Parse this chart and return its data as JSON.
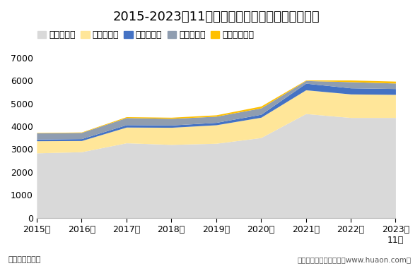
{
  "title": "2015-2023年11月广东省各发电类型发电量统计图",
  "xlabel_unit": "单位：亿千瓦时",
  "footer": "制图：华经产业研究院（www.huaon.com）",
  "years": [
    "2015年",
    "2016年",
    "2017年",
    "2018年",
    "2019年",
    "2020年",
    "2021年",
    "2022年",
    "2023年\n11月"
  ],
  "series": [
    {
      "name": "火力发电量",
      "color": "#d9d9d9",
      "values": [
        2830,
        2880,
        3270,
        3200,
        3250,
        3500,
        4550,
        4380,
        4380
      ]
    },
    {
      "name": "核能发电量",
      "color": "#ffe699",
      "values": [
        530,
        490,
        690,
        750,
        810,
        890,
        1040,
        1030,
        1010
      ]
    },
    {
      "name": "风力发电量",
      "color": "#4472c4",
      "values": [
        75,
        85,
        105,
        100,
        105,
        130,
        290,
        265,
        255
      ]
    },
    {
      "name": "水力发电量",
      "color": "#8f9db0",
      "values": [
        270,
        270,
        310,
        290,
        270,
        280,
        115,
        270,
        240
      ]
    },
    {
      "name": "太阳能发电量",
      "color": "#ffc000",
      "values": [
        15,
        20,
        40,
        50,
        60,
        80,
        25,
        75,
        85
      ]
    }
  ],
  "ylim": [
    0,
    7000
  ],
  "yticks": [
    0,
    1000,
    2000,
    3000,
    4000,
    5000,
    6000,
    7000
  ],
  "bg_color": "#ffffff",
  "title_fontsize": 13,
  "legend_fontsize": 9,
  "tick_fontsize": 9
}
